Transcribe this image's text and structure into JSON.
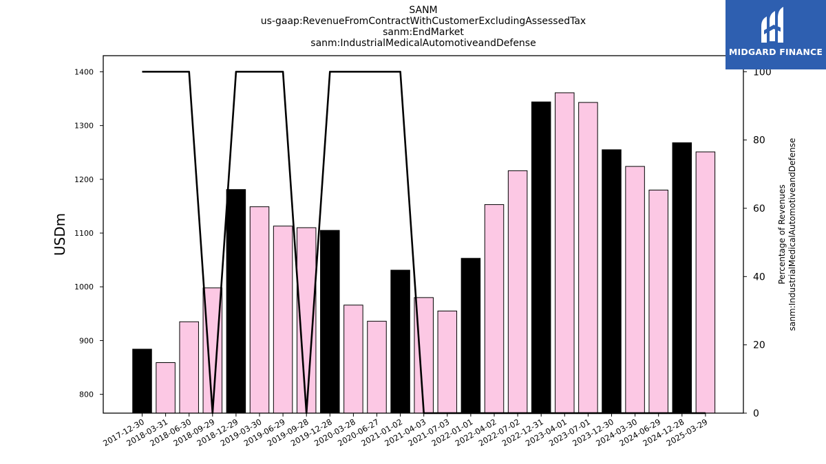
{
  "title_lines": [
    "SANM",
    "us-gaap:RevenueFromContractWithCustomerExcludingAssessedTax",
    "sanm:EndMarket",
    "sanm:IndustrialMedicalAutomotiveandDefense"
  ],
  "brand": {
    "name": "MIDGARD FINANCE",
    "color": "#2e5fb0"
  },
  "colors": {
    "bar_highlight": "#000000",
    "bar_normal": "#fcc8e4",
    "line": "#000000"
  },
  "chart_data": {
    "type": "bar",
    "categories": [
      "2017-12-30",
      "2018-03-31",
      "2018-06-30",
      "2018-09-29",
      "2018-12-29",
      "2019-03-30",
      "2019-06-29",
      "2019-09-28",
      "2019-12-28",
      "2020-03-28",
      "2020-06-27",
      "2021-01-02",
      "2021-04-03",
      "2021-07-03",
      "2022-01-01",
      "2022-04-02",
      "2022-07-02",
      "2022-12-31",
      "2023-04-01",
      "2023-07-01",
      "2023-12-30",
      "2024-03-30",
      "2024-06-29",
      "2024-12-28",
      "2025-03-29"
    ],
    "values": [
      884,
      859,
      935,
      998,
      1181,
      1149,
      1113,
      1110,
      1105,
      966,
      936,
      1031,
      980,
      955,
      1053,
      1153,
      1216,
      1344,
      1361,
      1343,
      1255,
      1224,
      1180,
      1268,
      1251
    ],
    "highlight": [
      true,
      false,
      false,
      false,
      true,
      false,
      false,
      false,
      true,
      false,
      false,
      true,
      false,
      false,
      true,
      false,
      false,
      true,
      false,
      false,
      true,
      false,
      false,
      true,
      false
    ],
    "line_values": [
      100,
      100,
      100,
      0,
      100,
      100,
      100,
      0,
      100,
      100,
      100,
      100,
      0,
      0,
      0,
      0,
      0,
      0,
      0,
      0,
      0,
      0,
      0,
      0,
      0
    ],
    "ylabel": "USDm",
    "y2label_lines": [
      "Percentage of Revenues",
      "sanm:IndustrialMedicalAutomotiveandDefense"
    ],
    "ylim": [
      765,
      1430
    ],
    "y_ticks": [
      800,
      900,
      1000,
      1100,
      1200,
      1300,
      1400
    ],
    "y2lim": [
      0,
      104.7
    ],
    "y2_ticks": [
      0,
      20,
      40,
      60,
      80,
      100
    ],
    "grid": false
  }
}
